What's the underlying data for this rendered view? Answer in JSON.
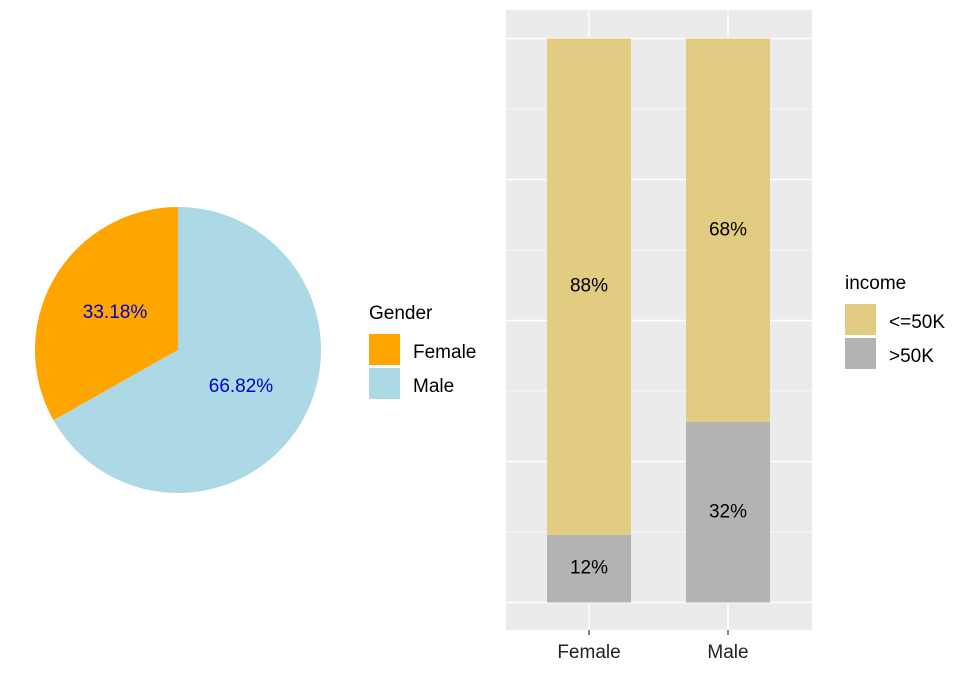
{
  "chart_data": [
    {
      "type": "pie",
      "labels": [
        "Female",
        "Male"
      ],
      "values": [
        33.18,
        66.82
      ],
      "data_labels": [
        "33.18%",
        "66.82%"
      ],
      "colors": [
        "#FFA500",
        "#ADD8E6"
      ],
      "label_color": "#0000CD",
      "legend": {
        "title": "Gender",
        "entries": [
          "Female",
          "Male"
        ],
        "placement": "right"
      }
    },
    {
      "type": "bar",
      "stacked": true,
      "categories": [
        "Female",
        "Male"
      ],
      "series": [
        {
          "name": "<=50K",
          "values": [
            88,
            68
          ],
          "labels": [
            "88%",
            "68%"
          ],
          "color": "#E2CC81"
        },
        {
          "name": ">50K",
          "values": [
            12,
            32
          ],
          "labels": [
            "12%",
            "32%"
          ],
          "color": "#B3B3B3"
        }
      ],
      "ylim": [
        0,
        100
      ],
      "grid": true,
      "panel_color": "#EBEBEB",
      "legend": {
        "title": "income",
        "entries": [
          "<=50K",
          ">50K"
        ],
        "placement": "right"
      }
    }
  ]
}
